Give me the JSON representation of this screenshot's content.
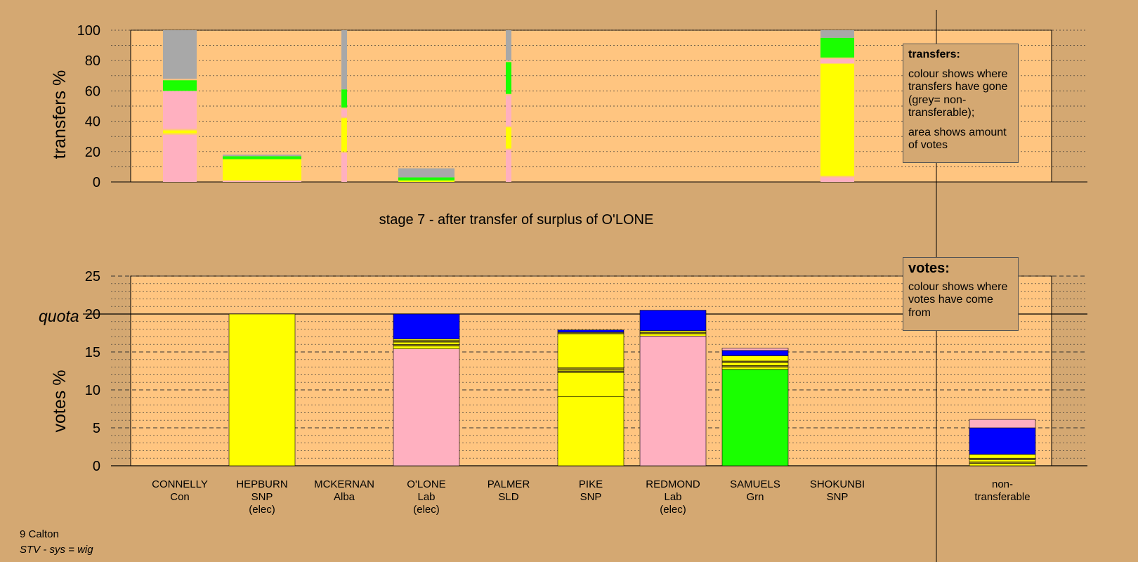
{
  "colors": {
    "background": "#d4a872",
    "plot_bg": "#ffc580",
    "yellow": "#ffff00",
    "pink": "#ffb0c0",
    "green": "#1aff00",
    "blue": "#0000ff",
    "grey": "#a8a8a8",
    "olive": "#8a7a20"
  },
  "stage_title": "stage 7 - after transfer of surplus of O'LONE",
  "legend_transfers": {
    "heading": "transfers:",
    "line1": "colour shows where transfers have gone (grey= non-transferable);",
    "line2": "area shows amount of votes"
  },
  "legend_votes": {
    "heading": "votes:",
    "line1": "colour shows where votes have come from"
  },
  "footer": {
    "ward": "9 Calton",
    "system": "STV - sys = wig"
  },
  "candidates": [
    {
      "name": "CONNELLY",
      "party": "Con",
      "status": ""
    },
    {
      "name": "HEPBURN",
      "party": "SNP",
      "status": "(elec)"
    },
    {
      "name": "MCKERNAN",
      "party": "Alba",
      "status": ""
    },
    {
      "name": "O'LONE",
      "party": "Lab",
      "status": "(elec)"
    },
    {
      "name": "PALMER",
      "party": "SLD",
      "status": ""
    },
    {
      "name": "PIKE",
      "party": "SNP",
      "status": ""
    },
    {
      "name": "REDMOND",
      "party": "Lab",
      "status": "(elec)"
    },
    {
      "name": "SAMUELS",
      "party": "Grn",
      "status": ""
    },
    {
      "name": "SHOKUNBI",
      "party": "SNP",
      "status": ""
    },
    {
      "name": "non-",
      "party": "transferable",
      "status": ""
    }
  ],
  "chart_data": [
    {
      "type": "bar",
      "subtype": "stacked",
      "ylabel": "transfers %",
      "ylim": [
        0,
        100
      ],
      "yticks": [
        0,
        20,
        40,
        60,
        80,
        100
      ],
      "grid": true,
      "bars": [
        {
          "candidate": "CONNELLY",
          "width": "narrow",
          "segments": [
            {
              "color": "pink",
              "from": 0,
              "to": 31
            },
            {
              "color": "yellow",
              "from": 32,
              "to": 34
            },
            {
              "color": "pink",
              "from": 35,
              "to": 60
            },
            {
              "color": "green",
              "from": 60,
              "to": 67
            },
            {
              "color": "grey",
              "from": 68,
              "to": 100
            }
          ]
        },
        {
          "candidate": "HEPBURN",
          "width": "wide",
          "segments": [
            {
              "color": "pink",
              "from": 0,
              "to": 1
            },
            {
              "color": "yellow",
              "from": 1,
              "to": 15
            },
            {
              "color": "green",
              "from": 15,
              "to": 17
            },
            {
              "color": "grey",
              "from": 17,
              "to": 18
            }
          ]
        },
        {
          "candidate": "MCKERNAN",
          "width": "thin",
          "segments": [
            {
              "color": "pink",
              "from": 0,
              "to": 19
            },
            {
              "color": "yellow",
              "from": 20,
              "to": 42
            },
            {
              "color": "pink",
              "from": 43,
              "to": 48
            },
            {
              "color": "green",
              "from": 49,
              "to": 61
            },
            {
              "color": "grey",
              "from": 61,
              "to": 100
            }
          ]
        },
        {
          "candidate": "O'LONE",
          "width": "medium",
          "segments": [
            {
              "color": "yellow",
              "from": 0,
              "to": 1
            },
            {
              "color": "green",
              "from": 1,
              "to": 3
            },
            {
              "color": "grey",
              "from": 3,
              "to": 9
            }
          ]
        },
        {
          "candidate": "PALMER",
          "width": "thin",
          "segments": [
            {
              "color": "pink",
              "from": 0,
              "to": 21
            },
            {
              "color": "yellow",
              "from": 22,
              "to": 36
            },
            {
              "color": "pink",
              "from": 37,
              "to": 57
            },
            {
              "color": "green",
              "from": 58,
              "to": 79
            },
            {
              "color": "grey",
              "from": 80,
              "to": 100
            }
          ]
        },
        {
          "candidate": "SHOKUNBI",
          "width": "narrow",
          "segments": [
            {
              "color": "pink",
              "from": 0,
              "to": 3
            },
            {
              "color": "yellow",
              "from": 4,
              "to": 78
            },
            {
              "color": "pink",
              "from": 78,
              "to": 81
            },
            {
              "color": "green",
              "from": 82,
              "to": 95
            },
            {
              "color": "grey",
              "from": 95,
              "to": 100
            }
          ]
        }
      ]
    },
    {
      "type": "bar",
      "subtype": "stacked",
      "ylabel": "votes %",
      "ylim": [
        0,
        25
      ],
      "yticks": [
        0,
        5,
        10,
        15,
        20,
        25
      ],
      "quota": 20,
      "quota_label": "quota",
      "grid": true,
      "bars": [
        {
          "candidate": "HEPBURN",
          "segments": [
            {
              "color": "yellow",
              "from": 0,
              "to": 20
            }
          ]
        },
        {
          "candidate": "O'LONE",
          "segments": [
            {
              "color": "pink",
              "from": 0,
              "to": 15.4
            },
            {
              "color": "yellow",
              "from": 15.4,
              "to": 15.8
            },
            {
              "color": "olive",
              "from": 15.8,
              "to": 16.0
            },
            {
              "color": "yellow",
              "from": 16.0,
              "to": 16.3
            },
            {
              "color": "olive",
              "from": 16.3,
              "to": 16.5
            },
            {
              "color": "yellow",
              "from": 16.5,
              "to": 16.7
            },
            {
              "color": "blue",
              "from": 16.7,
              "to": 20
            }
          ]
        },
        {
          "candidate": "PIKE",
          "segments": [
            {
              "color": "yellow",
              "from": 0,
              "to": 9.1
            },
            {
              "color": "yellow",
              "from": 9.1,
              "to": 12.3
            },
            {
              "color": "olive",
              "from": 12.3,
              "to": 12.5
            },
            {
              "color": "yellow",
              "from": 12.5,
              "to": 12.7
            },
            {
              "color": "olive",
              "from": 12.7,
              "to": 12.9
            },
            {
              "color": "yellow",
              "from": 12.9,
              "to": 17.4
            },
            {
              "color": "olive",
              "from": 17.4,
              "to": 17.6
            },
            {
              "color": "blue",
              "from": 17.6,
              "to": 17.9
            }
          ]
        },
        {
          "candidate": "REDMOND",
          "segments": [
            {
              "color": "pink",
              "from": 0,
              "to": 17.1
            },
            {
              "color": "yellow",
              "from": 17.1,
              "to": 17.4
            },
            {
              "color": "olive",
              "from": 17.4,
              "to": 17.6
            },
            {
              "color": "yellow",
              "from": 17.6,
              "to": 17.8
            },
            {
              "color": "blue",
              "from": 17.8,
              "to": 20.5
            }
          ]
        },
        {
          "candidate": "SAMUELS",
          "segments": [
            {
              "color": "green",
              "from": 0,
              "to": 12.7
            },
            {
              "color": "yellow",
              "from": 12.7,
              "to": 13.0
            },
            {
              "color": "olive",
              "from": 13.0,
              "to": 13.2
            },
            {
              "color": "yellow",
              "from": 13.2,
              "to": 13.6
            },
            {
              "color": "olive",
              "from": 13.6,
              "to": 13.8
            },
            {
              "color": "yellow",
              "from": 13.8,
              "to": 14.5
            },
            {
              "color": "blue",
              "from": 14.5,
              "to": 15.2
            },
            {
              "color": "pink",
              "from": 15.2,
              "to": 15.5
            }
          ]
        },
        {
          "candidate": "non-transferable",
          "segments": [
            {
              "color": "yellow",
              "from": 0,
              "to": 0.3
            },
            {
              "color": "olive",
              "from": 0.3,
              "to": 0.5
            },
            {
              "color": "yellow",
              "from": 0.5,
              "to": 0.8
            },
            {
              "color": "olive",
              "from": 0.8,
              "to": 1.0
            },
            {
              "color": "yellow",
              "from": 1.0,
              "to": 1.5
            },
            {
              "color": "blue",
              "from": 1.5,
              "to": 5.0
            },
            {
              "color": "pink",
              "from": 5.0,
              "to": 6.1
            }
          ]
        }
      ]
    }
  ]
}
